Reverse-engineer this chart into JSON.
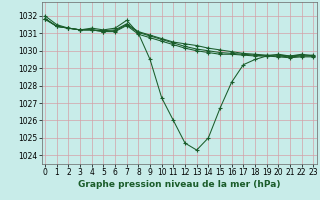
{
  "title": "Graphe pression niveau de la mer (hPa)",
  "background_color": "#c8ece9",
  "grid_color": "#d4a0a8",
  "line_color": "#1a5c2a",
  "x_ticks": [
    0,
    1,
    2,
    3,
    4,
    5,
    6,
    7,
    8,
    9,
    10,
    11,
    12,
    13,
    14,
    15,
    16,
    17,
    18,
    19,
    20,
    21,
    22,
    23
  ],
  "y_ticks": [
    1024,
    1025,
    1026,
    1027,
    1028,
    1029,
    1030,
    1031,
    1032
  ],
  "ylim": [
    1023.5,
    1032.8
  ],
  "xlim": [
    -0.3,
    23.3
  ],
  "series": [
    [
      1032.0,
      1031.5,
      1031.3,
      1031.2,
      1031.3,
      1031.2,
      1031.3,
      1031.75,
      1031.0,
      1029.5,
      1027.3,
      1026.0,
      1024.7,
      1024.3,
      1025.0,
      1026.7,
      1028.2,
      1029.2,
      1029.5,
      1029.7,
      1029.8,
      1029.7,
      1029.8,
      1029.7
    ],
    [
      1031.8,
      1031.4,
      1031.3,
      1031.2,
      1031.2,
      1031.15,
      1031.2,
      1031.55,
      1031.1,
      1030.9,
      1030.7,
      1030.5,
      1030.4,
      1030.3,
      1030.15,
      1030.05,
      1029.95,
      1029.85,
      1029.8,
      1029.75,
      1029.75,
      1029.7,
      1029.75,
      1029.75
    ],
    [
      1031.85,
      1031.4,
      1031.3,
      1031.2,
      1031.2,
      1031.1,
      1031.15,
      1031.5,
      1031.05,
      1030.85,
      1030.65,
      1030.45,
      1030.25,
      1030.1,
      1030.0,
      1029.9,
      1029.85,
      1029.8,
      1029.75,
      1029.7,
      1029.7,
      1029.65,
      1029.7,
      1029.7
    ],
    [
      1031.85,
      1031.4,
      1031.3,
      1031.2,
      1031.2,
      1031.1,
      1031.1,
      1031.45,
      1030.95,
      1030.75,
      1030.55,
      1030.35,
      1030.15,
      1030.0,
      1029.9,
      1029.8,
      1029.8,
      1029.75,
      1029.7,
      1029.7,
      1029.65,
      1029.6,
      1029.65,
      1029.65
    ]
  ],
  "ylabel_fontsize": 5.5,
  "xlabel_fontsize": 6.5,
  "tick_fontsize": 5.5
}
